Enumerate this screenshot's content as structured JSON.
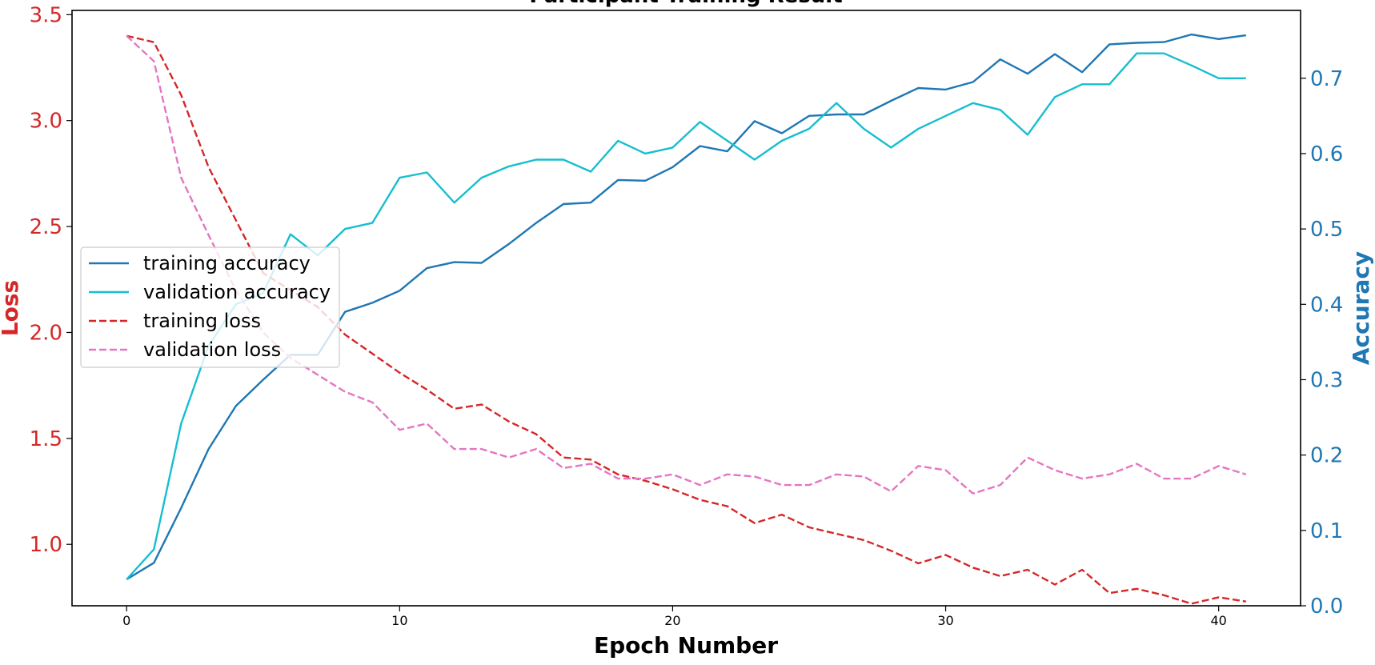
{
  "chart_data": {
    "type": "line",
    "title": "Participant Training Result",
    "xlabel": "Epoch Number",
    "ylabel_left": "Loss",
    "ylabel_right": "Accuracy",
    "xlim": [
      -2,
      43
    ],
    "ylim_left": [
      0.71,
      3.52
    ],
    "ylim_right": [
      0.0,
      0.79
    ],
    "x_ticks": [
      0,
      10,
      20,
      30,
      40
    ],
    "y_ticks_left": [
      1.0,
      1.5,
      2.0,
      2.5,
      3.0,
      3.5
    ],
    "y_ticks_right": [
      0.0,
      0.1,
      0.2,
      0.3,
      0.4,
      0.5,
      0.6,
      0.7
    ],
    "legend_position": "center-left",
    "colors": {
      "loss_axis": "#d62728",
      "accuracy_axis": "#1f77b4",
      "training_accuracy": "#1f77b4",
      "validation_accuracy": "#17becf",
      "training_loss": "#d62728",
      "validation_loss": "#e377c2"
    },
    "x": [
      0,
      1,
      2,
      3,
      4,
      5,
      6,
      7,
      8,
      9,
      10,
      11,
      12,
      13,
      14,
      15,
      16,
      17,
      18,
      19,
      20,
      21,
      22,
      23,
      24,
      25,
      26,
      27,
      28,
      29,
      30,
      31,
      32,
      33,
      34,
      35,
      36,
      37,
      38,
      39,
      40,
      41
    ],
    "series": [
      {
        "name": "training accuracy",
        "axis": "right",
        "style": "solid",
        "values": [
          0.035,
          0.057,
          0.13,
          0.208,
          0.265,
          0.3,
          0.333,
          0.333,
          0.39,
          0.402,
          0.418,
          0.448,
          0.456,
          0.455,
          0.48,
          0.508,
          0.533,
          0.535,
          0.565,
          0.564,
          0.582,
          0.61,
          0.603,
          0.643,
          0.627,
          0.65,
          0.652,
          0.652,
          0.67,
          0.687,
          0.685,
          0.695,
          0.725,
          0.706,
          0.732,
          0.708,
          0.745,
          0.747,
          0.748,
          0.758,
          0.752,
          0.757
        ]
      },
      {
        "name": "validation accuracy",
        "axis": "right",
        "style": "solid",
        "values": [
          0.035,
          0.075,
          0.242,
          0.345,
          0.4,
          0.415,
          0.493,
          0.465,
          0.5,
          0.508,
          0.568,
          0.575,
          0.535,
          0.568,
          0.583,
          0.592,
          0.592,
          0.576,
          0.617,
          0.6,
          0.608,
          0.642,
          0.617,
          0.592,
          0.617,
          0.633,
          0.667,
          0.633,
          0.608,
          0.633,
          0.65,
          0.667,
          0.658,
          0.625,
          0.675,
          0.692,
          0.692,
          0.733,
          0.733,
          0.717,
          0.7,
          0.7
        ]
      },
      {
        "name": "training loss",
        "axis": "left",
        "style": "dashed",
        "values": [
          3.4,
          3.37,
          3.12,
          2.78,
          2.53,
          2.28,
          2.2,
          2.12,
          1.99,
          1.9,
          1.81,
          1.73,
          1.64,
          1.66,
          1.58,
          1.52,
          1.41,
          1.4,
          1.33,
          1.3,
          1.26,
          1.21,
          1.18,
          1.1,
          1.14,
          1.08,
          1.05,
          1.02,
          0.97,
          0.91,
          0.95,
          0.89,
          0.85,
          0.88,
          0.81,
          0.88,
          0.77,
          0.79,
          0.76,
          0.72,
          0.75,
          0.73
        ]
      },
      {
        "name": "validation loss",
        "axis": "left",
        "style": "dashed",
        "values": [
          3.4,
          3.28,
          2.73,
          2.46,
          2.2,
          2.0,
          1.88,
          1.8,
          1.72,
          1.67,
          1.54,
          1.57,
          1.45,
          1.45,
          1.41,
          1.45,
          1.36,
          1.38,
          1.31,
          1.31,
          1.33,
          1.28,
          1.33,
          1.32,
          1.28,
          1.28,
          1.33,
          1.32,
          1.25,
          1.37,
          1.35,
          1.24,
          1.28,
          1.41,
          1.35,
          1.31,
          1.33,
          1.38,
          1.31,
          1.31,
          1.37,
          1.33
        ]
      }
    ]
  }
}
